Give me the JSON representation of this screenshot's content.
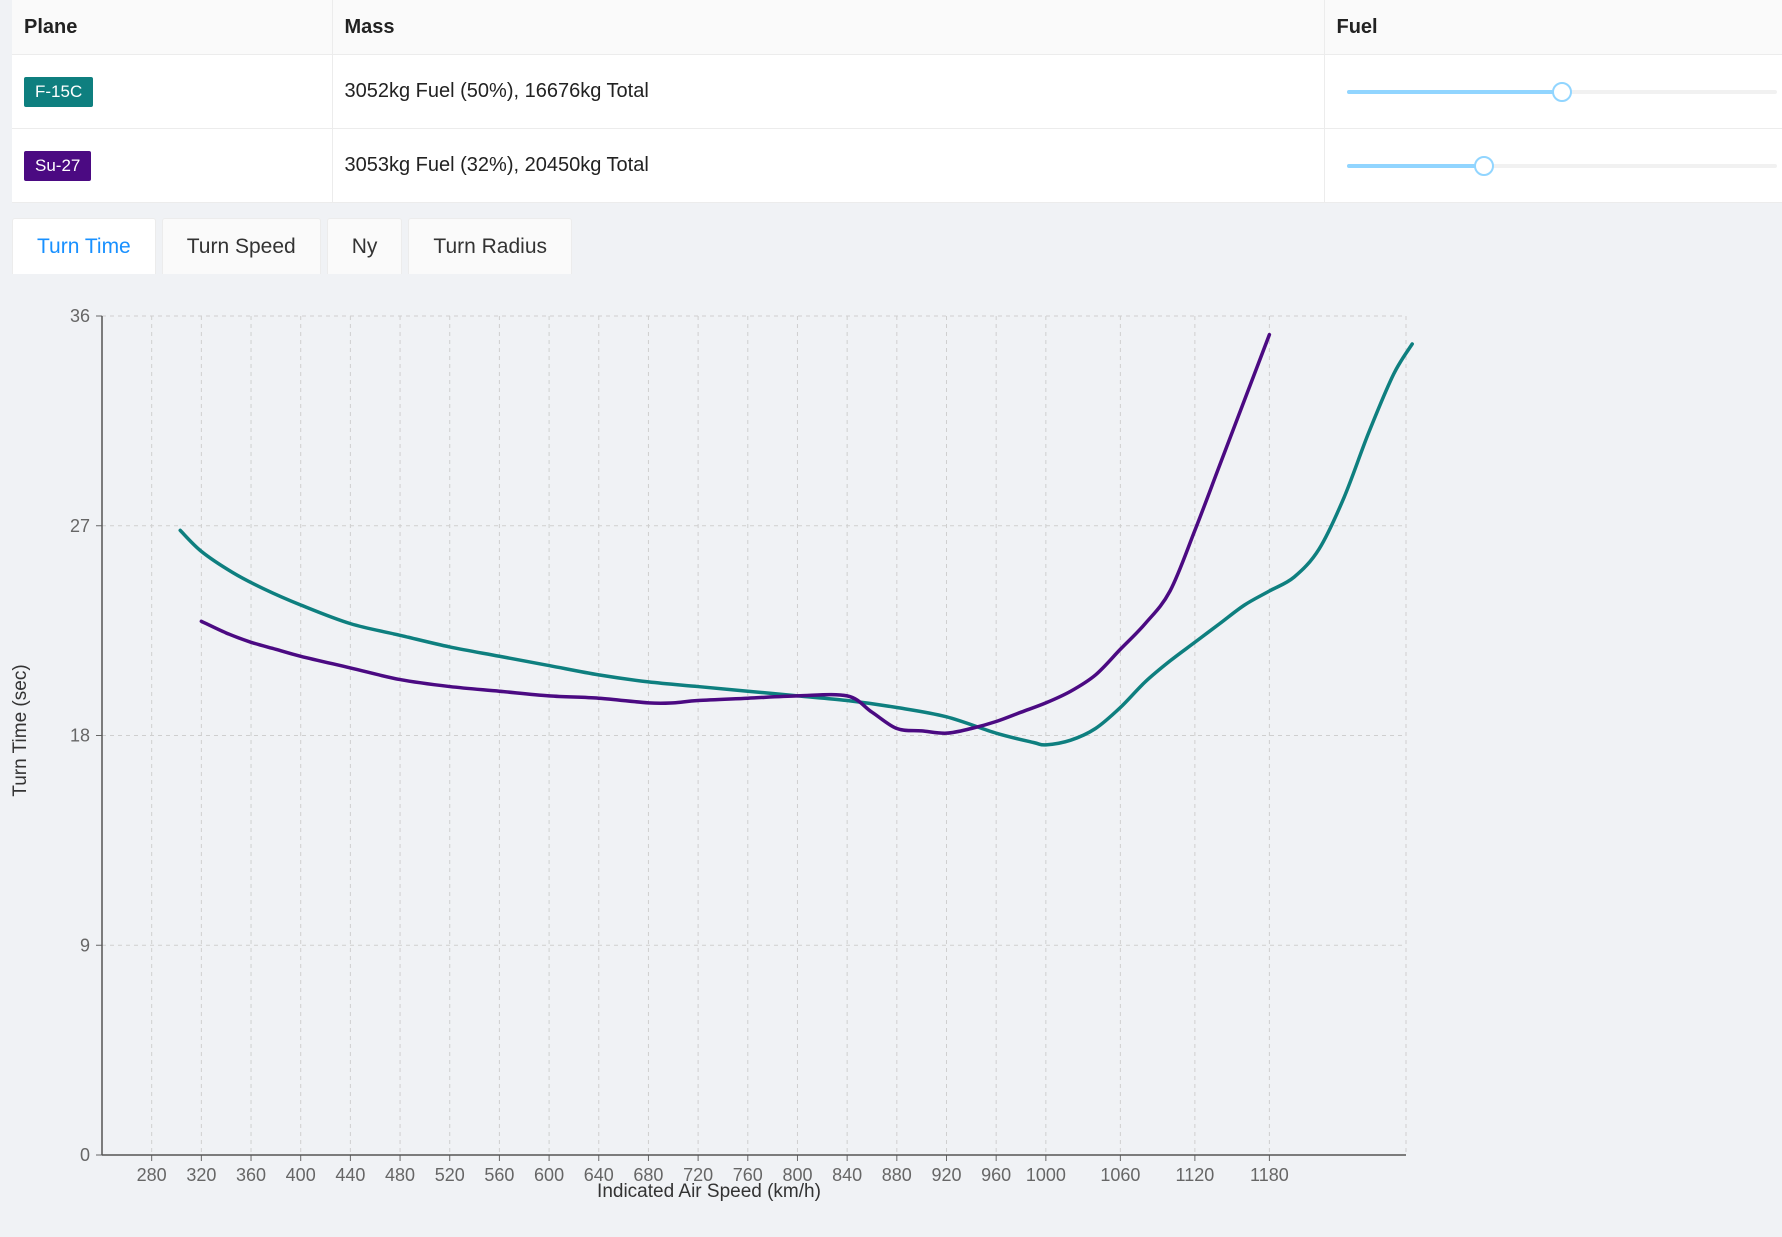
{
  "table": {
    "headers": {
      "plane": "Plane",
      "mass": "Mass",
      "fuel": "Fuel"
    },
    "rows": [
      {
        "plane": "F-15C",
        "color": "#0e7f7f",
        "mass": "3052kg Fuel (50%), 16676kg Total",
        "fuel_fraction": 0.5
      },
      {
        "plane": "Su-27",
        "color": "#4b0a82",
        "mass": "3053kg Fuel (32%), 20450kg Total",
        "fuel_fraction": 0.32
      }
    ]
  },
  "tabs": [
    {
      "label": "Turn Time",
      "active": true
    },
    {
      "label": "Turn Speed",
      "active": false
    },
    {
      "label": "Ny",
      "active": false
    },
    {
      "label": "Turn Radius",
      "active": false
    }
  ],
  "chart_data": {
    "type": "line",
    "xlabel": "Indicated Air Speed (km/h)",
    "ylabel": "Turn Time (sec)",
    "xlim": [
      240,
      1290
    ],
    "ylim": [
      0,
      36
    ],
    "xticks": [
      280,
      320,
      360,
      400,
      440,
      480,
      520,
      560,
      600,
      640,
      680,
      720,
      760,
      800,
      840,
      880,
      920,
      960,
      1000,
      1060,
      1120,
      1180
    ],
    "yticks": [
      0,
      9,
      18,
      27,
      36
    ],
    "grid": true,
    "series": [
      {
        "name": "F-15C",
        "color": "#0e7f7f",
        "x": [
          303,
          320,
          345,
          370,
          400,
          440,
          480,
          520,
          560,
          600,
          640,
          680,
          720,
          760,
          800,
          840,
          880,
          920,
          960,
          990,
          1000,
          1020,
          1040,
          1060,
          1080,
          1100,
          1120,
          1140,
          1160,
          1180,
          1200,
          1220,
          1240,
          1260,
          1280,
          1295
        ],
        "y": [
          26.8,
          25.9,
          25.0,
          24.3,
          23.6,
          22.8,
          22.3,
          21.8,
          21.4,
          21.0,
          20.6,
          20.3,
          20.1,
          19.9,
          19.7,
          19.5,
          19.2,
          18.8,
          18.1,
          17.7,
          17.6,
          17.8,
          18.3,
          19.2,
          20.3,
          21.2,
          22.0,
          22.8,
          23.6,
          24.2,
          24.8,
          26.0,
          28.2,
          31.0,
          33.5,
          34.8
        ],
        "vals_note": ""
      },
      {
        "name": "Su-27",
        "color": "#4b0a82",
        "x": [
          320,
          340,
          360,
          380,
          400,
          440,
          480,
          520,
          560,
          600,
          640,
          680,
          700,
          720,
          760,
          800,
          840,
          860,
          880,
          900,
          920,
          940,
          960,
          980,
          1000,
          1020,
          1040,
          1060,
          1080,
          1100,
          1120,
          1140,
          1160,
          1180
        ],
        "y": [
          22.9,
          22.4,
          22.0,
          21.7,
          21.4,
          20.9,
          20.4,
          20.1,
          19.9,
          19.7,
          19.6,
          19.4,
          19.4,
          19.5,
          19.6,
          19.7,
          19.7,
          19.0,
          18.3,
          18.2,
          18.1,
          18.3,
          18.6,
          19.0,
          19.4,
          19.9,
          20.6,
          21.7,
          22.8,
          24.2,
          26.8,
          29.6,
          32.4,
          35.2
        ],
        "vals_note": ""
      }
    ]
  }
}
